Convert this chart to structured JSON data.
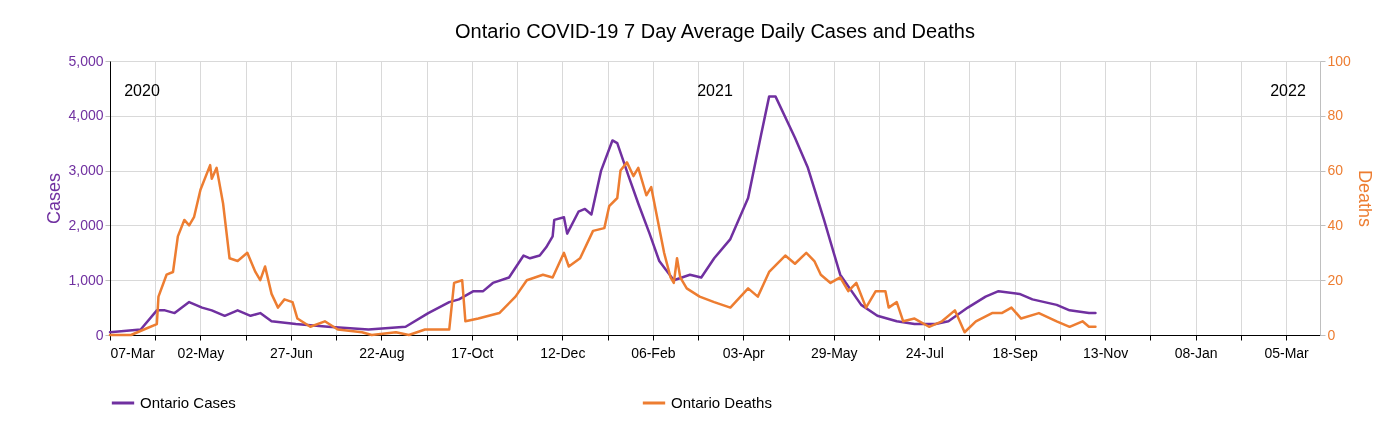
{
  "chart_data": {
    "type": "line",
    "title": "Ontario COVID-19 7 Day Average Daily Cases and Deaths",
    "ylabel": "Cases",
    "y2label": "Deaths",
    "xlim": [
      "2020-03-07",
      "2022-03-26"
    ],
    "xticks": [
      {
        "value": "2020-03-07",
        "label": "07-Mar"
      },
      {
        "value": "2020-04-04",
        "label": null
      },
      {
        "value": "2020-05-02",
        "label": "02-May"
      },
      {
        "value": "2020-05-30",
        "label": null
      },
      {
        "value": "2020-06-27",
        "label": "27-Jun"
      },
      {
        "value": "2020-07-25",
        "label": null
      },
      {
        "value": "2020-08-22",
        "label": "22-Aug"
      },
      {
        "value": "2020-09-19",
        "label": null
      },
      {
        "value": "2020-10-17",
        "label": "17-Oct"
      },
      {
        "value": "2020-11-14",
        "label": null
      },
      {
        "value": "2020-12-12",
        "label": "12-Dec"
      },
      {
        "value": "2021-01-09",
        "label": null
      },
      {
        "value": "2021-02-06",
        "label": "06-Feb"
      },
      {
        "value": "2021-03-06",
        "label": null
      },
      {
        "value": "2021-04-03",
        "label": "03-Apr"
      },
      {
        "value": "2021-05-01",
        "label": null
      },
      {
        "value": "2021-05-29",
        "label": "29-May"
      },
      {
        "value": "2021-06-26",
        "label": null
      },
      {
        "value": "2021-07-24",
        "label": "24-Jul"
      },
      {
        "value": "2021-08-21",
        "label": null
      },
      {
        "value": "2021-09-18",
        "label": "18-Sep"
      },
      {
        "value": "2021-10-16",
        "label": null
      },
      {
        "value": "2021-11-13",
        "label": "13-Nov"
      },
      {
        "value": "2021-12-11",
        "label": null
      },
      {
        "value": "2022-01-08",
        "label": "08-Jan"
      },
      {
        "value": "2022-02-05",
        "label": null
      },
      {
        "value": "2022-03-05",
        "label": "05-Mar"
      }
    ],
    "ylim": [
      0,
      5000
    ],
    "yticks": [
      0,
      {
        "value": 1000,
        "label": "1,000"
      },
      {
        "value": 2000,
        "label": "2,000"
      },
      {
        "value": 3000,
        "label": "3,000"
      },
      {
        "value": 4000,
        "label": "4,000"
      },
      {
        "value": 5000,
        "label": "5,000"
      }
    ],
    "y2lim": [
      0,
      100
    ],
    "y2ticks": [
      0,
      20,
      40,
      60,
      80,
      100
    ],
    "grid": true,
    "legend": "bottom",
    "marker": "none",
    "line_style": "solid",
    "annotations": [
      "2020",
      "2021",
      "2022"
    ],
    "series": [
      {
        "name": "Ontario Cases",
        "color": "#7030a0",
        "x": [
          "2020-03-07",
          "2020-03-26",
          "2020-04-05",
          "2020-04-10",
          "2020-04-16",
          "2020-04-25",
          "2020-05-03",
          "2020-05-09",
          "2020-05-17",
          "2020-05-25",
          "2020-06-02",
          "2020-06-08",
          "2020-06-15",
          "2020-06-30",
          "2020-07-20",
          "2020-08-14",
          "2020-09-06",
          "2020-09-20",
          "2020-10-03",
          "2020-10-09",
          "2020-10-18",
          "2020-10-24",
          "2020-10-30",
          "2020-11-09",
          "2020-11-18",
          "2020-11-22",
          "2020-11-28",
          "2020-12-02",
          "2020-12-06",
          "2020-12-07",
          "2020-12-13",
          "2020-12-15",
          "2020-12-22",
          "2020-12-26",
          "2020-12-30",
          "2021-01-05",
          "2021-01-12",
          "2021-01-15",
          "2021-01-22",
          "2021-01-28",
          "2021-02-04",
          "2021-02-10",
          "2021-02-19",
          "2021-03-01",
          "2021-03-08",
          "2021-03-16",
          "2021-03-26",
          "2021-04-06",
          "2021-04-14",
          "2021-04-19",
          "2021-04-23",
          "2021-05-05",
          "2021-05-13",
          "2021-05-23",
          "2021-06-02",
          "2021-06-15",
          "2021-06-25",
          "2021-07-07",
          "2021-07-18",
          "2021-07-31",
          "2021-08-08",
          "2021-08-20",
          "2021-08-31",
          "2021-09-08",
          "2021-09-21",
          "2021-09-29",
          "2021-10-14",
          "2021-10-22",
          "2021-11-03",
          "2021-11-07"
        ],
        "values": [
          50,
          100,
          450,
          450,
          400,
          600,
          500,
          450,
          350,
          450,
          350,
          400,
          250,
          200,
          150,
          100,
          150,
          400,
          600,
          650,
          800,
          800,
          950,
          1050,
          1450,
          1400,
          1450,
          1600,
          1800,
          2100,
          2150,
          1850,
          2250,
          2300,
          2200,
          3000,
          3550,
          3500,
          2900,
          2400,
          1850,
          1350,
          1000,
          1100,
          1050,
          1400,
          1750,
          2500,
          3650,
          4350,
          4350,
          3600,
          3050,
          2100,
          1100,
          550,
          350,
          250,
          200,
          200,
          250,
          500,
          700,
          800,
          750,
          650,
          550,
          450,
          400,
          400
        ]
      },
      {
        "name": "Ontario Deaths",
        "color": "#ed7d31",
        "axis": "y2",
        "x": [
          "2020-03-07",
          "2020-03-20",
          "2020-03-28",
          "2020-04-05",
          "2020-04-06",
          "2020-04-11",
          "2020-04-15",
          "2020-04-18",
          "2020-04-22",
          "2020-04-25",
          "2020-04-28",
          "2020-05-02",
          "2020-05-08",
          "2020-05-09",
          "2020-05-12",
          "2020-05-16",
          "2020-05-20",
          "2020-05-25",
          "2020-05-31",
          "2020-06-05",
          "2020-06-08",
          "2020-06-11",
          "2020-06-15",
          "2020-06-19",
          "2020-06-23",
          "2020-06-28",
          "2020-07-01",
          "2020-07-09",
          "2020-07-18",
          "2020-07-26",
          "2020-08-10",
          "2020-08-16",
          "2020-08-31",
          "2020-09-08",
          "2020-09-18",
          "2020-10-03",
          "2020-10-06",
          "2020-10-11",
          "2020-10-13",
          "2020-10-21",
          "2020-11-03",
          "2020-11-13",
          "2020-11-20",
          "2020-11-30",
          "2020-12-06",
          "2020-12-13",
          "2020-12-16",
          "2020-12-23",
          "2020-12-31",
          "2021-01-07",
          "2021-01-10",
          "2021-01-15",
          "2021-01-17",
          "2021-01-21",
          "2021-01-25",
          "2021-01-28",
          "2021-02-02",
          "2021-02-05",
          "2021-02-08",
          "2021-02-13",
          "2021-02-17",
          "2021-02-19",
          "2021-02-21",
          "2021-02-23",
          "2021-02-27",
          "2021-03-07",
          "2021-03-16",
          "2021-03-26",
          "2021-04-06",
          "2021-04-12",
          "2021-04-19",
          "2021-04-29",
          "2021-05-05",
          "2021-05-12",
          "2021-05-17",
          "2021-05-21",
          "2021-05-27",
          "2021-06-02",
          "2021-06-07",
          "2021-06-12",
          "2021-06-18",
          "2021-06-24",
          "2021-06-30",
          "2021-07-02",
          "2021-07-07",
          "2021-07-11",
          "2021-07-18",
          "2021-07-27",
          "2021-08-04",
          "2021-08-12",
          "2021-08-18",
          "2021-08-25",
          "2021-09-04",
          "2021-09-10",
          "2021-09-16",
          "2021-09-22",
          "2021-10-03",
          "2021-10-14",
          "2021-10-22",
          "2021-10-30",
          "2021-11-03",
          "2021-11-07"
        ],
        "values": [
          0,
          0,
          2,
          4,
          14,
          22,
          23,
          36,
          42,
          40,
          43,
          53,
          62,
          57,
          61,
          48,
          28,
          27,
          30,
          23,
          20,
          25,
          15,
          10,
          13,
          12,
          6,
          3,
          5,
          2,
          1,
          0,
          1,
          0,
          2,
          2,
          19,
          20,
          5,
          6,
          8,
          14,
          20,
          22,
          21,
          30,
          25,
          28,
          38,
          39,
          47,
          50,
          60,
          63,
          58,
          61,
          51,
          54,
          45,
          30,
          21,
          19,
          28,
          21,
          17,
          14,
          12,
          10,
          17,
          14,
          23,
          29,
          26,
          30,
          27,
          22,
          19,
          21,
          16,
          19,
          10,
          16,
          16,
          10,
          12,
          5,
          6,
          3,
          5,
          9,
          1,
          5,
          8,
          8,
          10,
          6,
          8,
          5,
          3,
          5,
          3,
          3
        ]
      }
    ]
  }
}
